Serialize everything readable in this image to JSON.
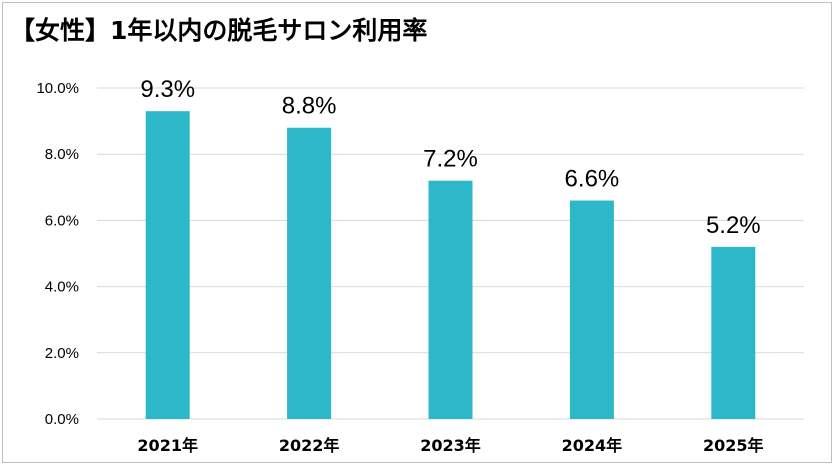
{
  "chart_data": {
    "type": "bar",
    "title": "【女性】1年以内の脱毛サロン利用率",
    "categories": [
      "2021年",
      "2022年",
      "2023年",
      "2024年",
      "2025年"
    ],
    "values": [
      9.3,
      8.8,
      7.2,
      6.6,
      5.2
    ],
    "data_labels": [
      "9.3%",
      "8.8%",
      "7.2%",
      "6.6%",
      "5.2%"
    ],
    "y_ticks": [
      0,
      2,
      4,
      6,
      8,
      10
    ],
    "y_tick_labels": [
      "0.0%",
      "2.0%",
      "4.0%",
      "6.0%",
      "8.0%",
      "10.0%"
    ],
    "ylim": [
      0,
      10
    ],
    "xlabel": "",
    "ylabel": "",
    "grid": true,
    "legend": "none",
    "bar_color": "#2cb8c8",
    "grid_color": "#d9d9d9"
  }
}
